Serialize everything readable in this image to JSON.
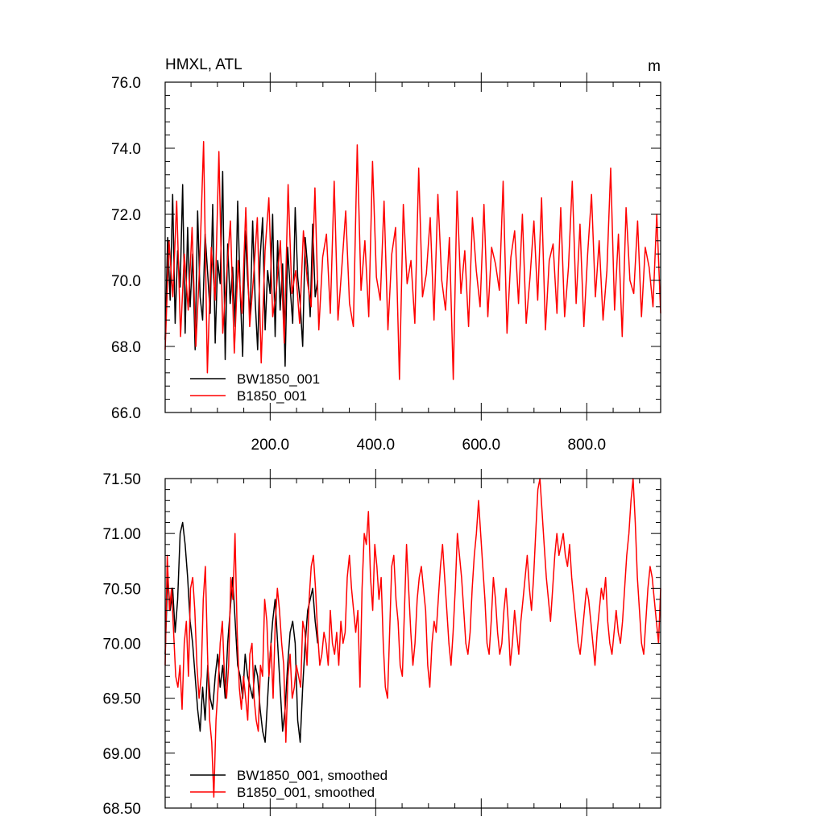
{
  "chart_data": [
    {
      "type": "line",
      "title": "HMXL, ATL",
      "units": "m",
      "xlim": [
        1,
        940
      ],
      "ylim": [
        66.0,
        76.0
      ],
      "x_ticks": [
        200,
        400,
        600,
        800
      ],
      "x_tick_labels": [
        "200.0",
        "400.0",
        "600.0",
        "800.0"
      ],
      "y_ticks": [
        66,
        68,
        70,
        72,
        74,
        76
      ],
      "y_tick_labels": [
        "66.0",
        "68.0",
        "70.0",
        "72.0",
        "74.0",
        "76.0"
      ],
      "legend": "bottom-left",
      "series": [
        {
          "name": "BW1850_001",
          "color": "#000000",
          "x_start": 1,
          "x_end": 290,
          "values": [
            68.2,
            71.3,
            69.4,
            72.6,
            68.7,
            70.9,
            69.8,
            72.9,
            68.4,
            71.6,
            69.2,
            70.8,
            67.9,
            72.1,
            69.5,
            68.8,
            71.4,
            70.2,
            69.0,
            72.3,
            68.1,
            70.6,
            69.9,
            73.3,
            67.6,
            71.1,
            69.3,
            70.4,
            68.6,
            72.4,
            69.7,
            67.7,
            71.5,
            70.0,
            68.9,
            71.8,
            69.4,
            67.9,
            70.7,
            71.9,
            68.5,
            70.3,
            69.6,
            72.0,
            68.3,
            71.2,
            69.1,
            70.5,
            67.4,
            71.0,
            69.8,
            68.7,
            72.2,
            70.1,
            69.3,
            68.0,
            71.3,
            70.4,
            68.9,
            71.7,
            69.5,
            70.0
          ]
        },
        {
          "name": "B1850_001",
          "color": "#ff0000",
          "x_start": 1,
          "x_end": 940,
          "values": [
            67.9,
            71.2,
            69.5,
            72.4,
            68.3,
            70.8,
            69.1,
            71.6,
            68.0,
            70.5,
            74.2,
            67.2,
            71.0,
            69.4,
            73.9,
            68.4,
            70.2,
            71.8,
            67.8,
            70.6,
            69.0,
            72.2,
            68.6,
            70.1,
            71.9,
            67.5,
            70.9,
            72.5,
            68.9,
            69.8,
            71.2,
            68.1,
            72.9,
            69.6,
            70.3,
            68.7,
            71.5,
            70.0,
            69.2,
            72.8,
            68.5,
            70.7,
            71.4,
            69.0,
            73.0,
            68.8,
            70.4,
            72.1,
            69.3,
            68.6,
            74.1,
            69.7,
            71.2,
            68.9,
            73.6,
            70.1,
            69.4,
            72.4,
            68.5,
            70.8,
            71.6,
            67.0,
            72.3,
            69.9,
            70.6,
            68.7,
            73.4,
            69.5,
            70.2,
            71.9,
            68.8,
            72.6,
            70.0,
            69.1,
            71.3,
            67.0,
            72.7,
            69.6,
            70.9,
            68.6,
            71.9,
            70.3,
            69.2,
            72.3,
            68.9,
            71.0,
            70.5,
            69.7,
            73.0,
            68.4,
            70.7,
            71.5,
            69.3,
            72.0,
            68.7,
            70.1,
            71.8,
            69.4,
            72.5,
            68.5,
            70.6,
            71.1,
            69.0,
            72.2,
            68.9,
            70.4,
            73.0,
            69.3,
            71.7,
            68.6,
            70.8,
            72.6,
            69.5,
            71.2,
            68.8,
            70.3,
            73.4,
            69.1,
            71.4,
            68.3,
            72.2,
            70.0,
            69.6,
            71.8,
            68.9,
            71.0,
            70.4,
            69.2,
            72.0,
            69.0
          ]
        }
      ]
    },
    {
      "type": "line",
      "xlim": [
        1,
        940
      ],
      "ylim": [
        68.5,
        71.5
      ],
      "y_ticks": [
        68.5,
        69.0,
        69.5,
        70.0,
        70.5,
        71.0,
        71.5
      ],
      "y_tick_labels": [
        "68.50",
        "69.00",
        "69.50",
        "70.00",
        "70.50",
        "71.00",
        "71.50"
      ],
      "legend": "bottom-left",
      "series": [
        {
          "name": "BW1850_001, smoothed",
          "color": "#000000",
          "x_start": 1,
          "x_end": 290,
          "values": [
            69.9,
            70.6,
            70.3,
            70.5,
            70.1,
            70.4,
            71.0,
            71.1,
            70.9,
            70.6,
            70.2,
            70.0,
            69.7,
            69.4,
            69.2,
            69.6,
            69.3,
            69.8,
            69.5,
            69.4,
            69.7,
            69.9,
            69.6,
            69.8,
            69.5,
            70.0,
            70.3,
            70.6,
            70.2,
            69.8,
            69.7,
            69.5,
            69.9,
            69.7,
            69.6,
            69.5,
            69.8,
            69.7,
            69.4,
            69.2,
            69.1,
            69.5,
            69.9,
            70.2,
            70.4,
            70.0,
            69.6,
            69.2,
            69.4,
            69.8,
            70.1,
            70.2,
            70.0,
            69.3,
            69.1,
            69.6,
            70.0,
            70.3,
            70.4,
            70.5,
            70.2,
            70.0
          ]
        },
        {
          "name": "B1850_001, smoothed",
          "color": "#ff0000",
          "x_start": 1,
          "x_end": 940,
          "values": [
            69.8,
            70.8,
            70.3,
            70.5,
            70.1,
            69.7,
            69.6,
            69.8,
            69.4,
            70.0,
            70.2,
            69.7,
            70.5,
            70.6,
            70.3,
            69.8,
            69.5,
            69.7,
            70.4,
            70.7,
            69.9,
            69.3,
            69.1,
            68.6,
            69.3,
            69.6,
            70.0,
            70.2,
            69.7,
            69.5,
            69.8,
            70.6,
            70.4,
            71.0,
            70.1,
            69.6,
            69.4,
            69.7,
            69.5,
            69.3,
            69.9,
            70.0,
            69.5,
            69.3,
            69.2,
            69.8,
            69.7,
            70.4,
            70.2,
            69.7,
            70.0,
            69.5,
            70.2,
            70.5,
            70.3,
            70.0,
            69.8,
            69.1,
            69.7,
            69.9,
            69.5,
            69.6,
            69.8,
            69.7,
            69.6,
            70.2,
            70.1,
            69.8,
            70.4,
            70.7,
            70.8,
            70.5,
            70.1,
            69.8,
            69.9,
            70.1,
            70.0,
            69.8,
            70.3,
            70.0,
            69.9,
            70.1,
            69.8,
            70.2,
            70.0,
            70.1,
            70.6,
            70.8,
            70.5,
            70.3,
            70.1,
            70.3,
            69.6,
            70.5,
            71.0,
            70.9,
            71.2,
            70.6,
            70.3,
            70.9,
            70.7,
            70.4,
            70.6,
            70.0,
            69.6,
            69.5,
            70.1,
            70.7,
            70.8,
            70.4,
            70.2,
            69.8,
            69.7,
            70.3,
            70.9,
            70.5,
            70.1,
            69.8,
            70.0,
            70.4,
            70.6,
            70.7,
            70.5,
            70.3,
            69.8,
            69.6,
            70.0,
            70.2,
            70.1,
            70.4,
            70.7,
            70.9,
            70.6,
            70.3,
            70.0,
            69.8,
            70.1,
            70.5,
            71.0,
            70.8,
            70.6,
            70.3,
            70.0,
            69.9,
            70.1,
            70.5,
            70.8,
            71.0,
            71.3,
            71.0,
            70.7,
            70.4,
            70.0,
            69.9,
            70.2,
            70.6,
            70.4,
            70.1,
            69.9,
            70.0,
            70.3,
            70.5,
            70.2,
            69.8,
            70.0,
            70.3,
            70.1,
            69.9,
            70.2,
            70.4,
            70.6,
            70.8,
            70.5,
            70.3,
            70.6,
            71.0,
            71.4,
            71.5,
            71.2,
            70.9,
            70.6,
            70.4,
            70.2,
            70.5,
            70.8,
            71.0,
            70.8,
            70.9,
            71.0,
            70.8,
            70.7,
            70.9,
            70.6,
            70.4,
            70.2,
            70.0,
            69.9,
            70.1,
            70.3,
            70.5,
            70.4,
            70.2,
            70.0,
            69.8,
            70.1,
            70.3,
            70.5,
            70.4,
            70.6,
            70.2,
            70.0,
            69.9,
            70.1,
            70.3,
            70.1,
            70.0,
            70.2,
            70.5,
            70.8,
            71.0,
            71.3,
            71.5,
            71.1,
            70.6,
            70.3,
            70.0,
            69.9,
            70.2,
            70.5,
            70.7,
            70.6,
            70.4,
            70.2,
            70.0,
            70.5
          ]
        }
      ]
    }
  ],
  "legend_top": {
    "item1": "BW1850_001",
    "item2": "B1850_001"
  },
  "legend_bottom": {
    "item1": "BW1850_001, smoothed",
    "item2": "B1850_001, smoothed"
  }
}
